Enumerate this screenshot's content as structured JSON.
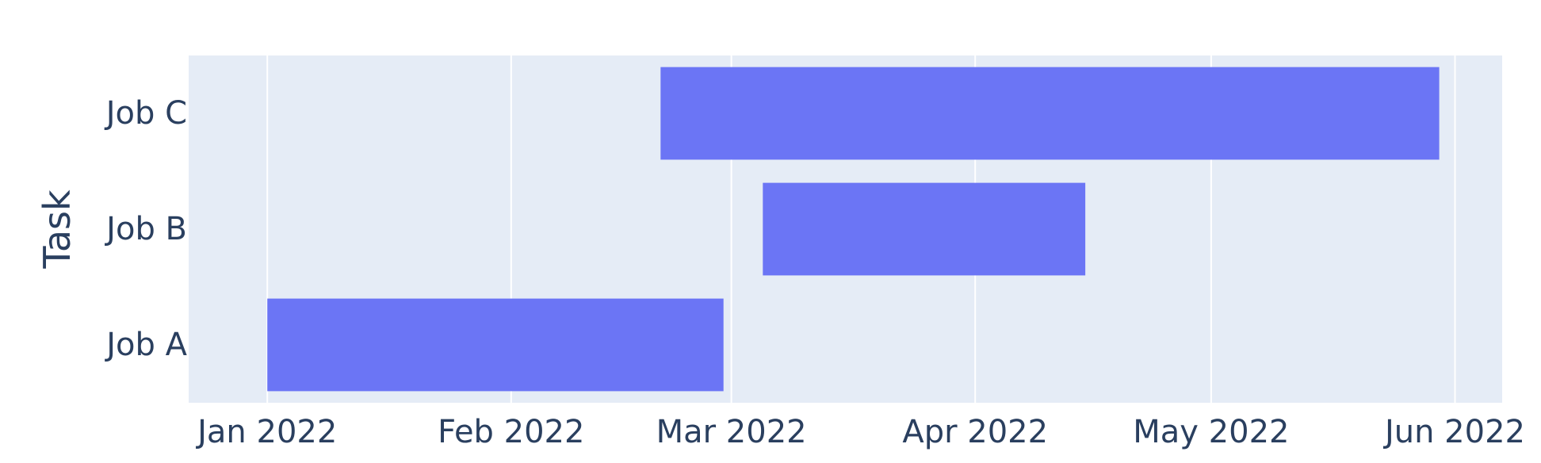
{
  "chart_data": {
    "type": "bar",
    "orientation": "horizontal",
    "chart_style": "gantt",
    "xlabel": "",
    "ylabel": "Task",
    "x_axis_type": "date",
    "xlim": [
      "2021-12-22",
      "2022-06-07"
    ],
    "x_ticks": [
      {
        "date": "2022-01-01",
        "label": "Jan 2022"
      },
      {
        "date": "2022-02-01",
        "label": "Feb 2022"
      },
      {
        "date": "2022-03-01",
        "label": "Mar 2022"
      },
      {
        "date": "2022-04-01",
        "label": "Apr 2022"
      },
      {
        "date": "2022-05-01",
        "label": "May 2022"
      },
      {
        "date": "2022-06-01",
        "label": "Jun 2022"
      }
    ],
    "categories": [
      "Job A",
      "Job B",
      "Job C"
    ],
    "tasks": [
      {
        "task": "Job A",
        "start": "2022-01-01",
        "finish": "2022-02-28"
      },
      {
        "task": "Job B",
        "start": "2022-03-05",
        "finish": "2022-04-15"
      },
      {
        "task": "Job C",
        "start": "2022-02-20",
        "finish": "2022-05-30"
      }
    ],
    "grid": true,
    "colors": {
      "bar": "#6b75f5",
      "plot_background": "#e5ecf6",
      "grid": "#ffffff",
      "text": "#2a3f5f"
    }
  }
}
